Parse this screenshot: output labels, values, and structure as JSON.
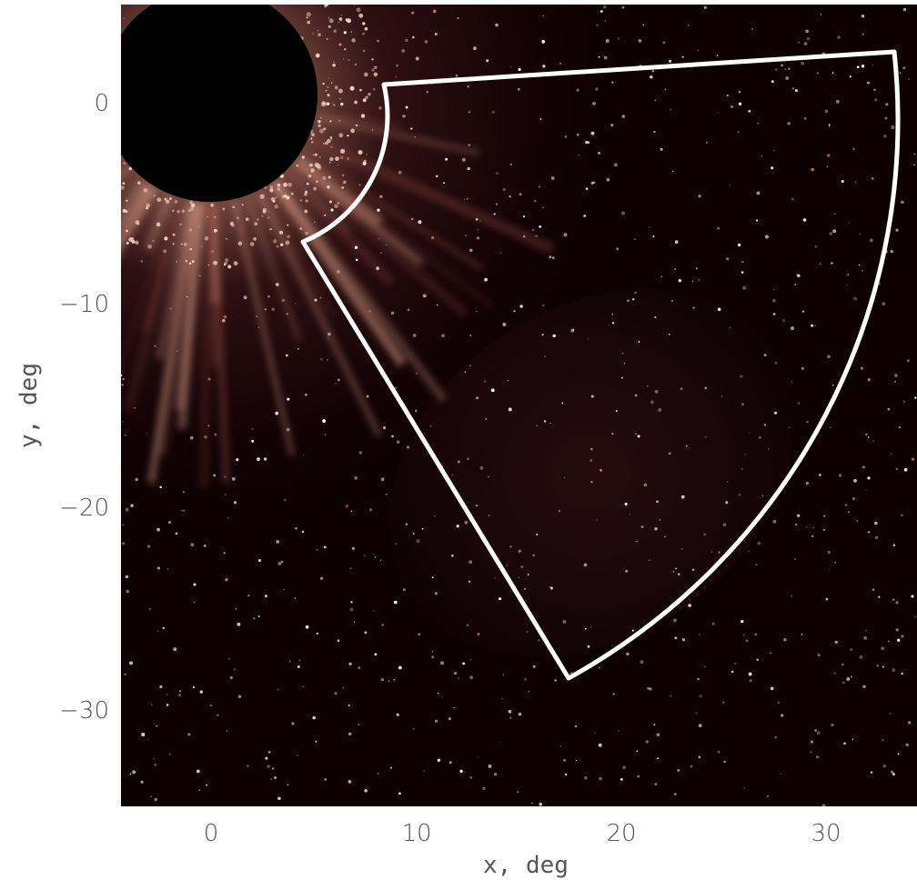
{
  "figure": {
    "x_axis": {
      "label": "x, deg",
      "ticks": [
        0,
        10,
        20,
        30
      ],
      "range": [
        -4.5,
        34
      ]
    },
    "y_axis": {
      "label": "y, deg",
      "ticks": [
        0,
        -10,
        -20,
        -30
      ],
      "range": [
        -35,
        4.5
      ]
    },
    "colors": {
      "background": "#0b0000",
      "glow": "#e8b49a",
      "outline": "#ffffff",
      "occulter": "#000000"
    },
    "occulter": {
      "center": [
        -0.3,
        0.7
      ],
      "radius": 5.2
    },
    "region_outline": {
      "shape": "sector",
      "vertices_deg": [
        [
          8.5,
          0.5
        ],
        [
          33.5,
          2.3
        ],
        [
          17.4,
          -28.7
        ],
        [
          4.4,
          -7.2
        ]
      ]
    }
  }
}
